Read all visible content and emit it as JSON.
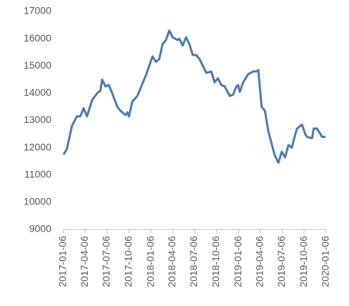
{
  "chart_data": {
    "type": "line",
    "color": "#4a7ab5",
    "x": [
      "2017-01-06",
      "2017-01-20",
      "2017-02-10",
      "2017-03-03",
      "2017-03-17",
      "2017-03-31",
      "2017-04-14",
      "2017-05-05",
      "2017-05-26",
      "2017-06-09",
      "2017-06-16",
      "2017-06-30",
      "2017-07-14",
      "2017-07-28",
      "2017-08-18",
      "2017-09-01",
      "2017-09-22",
      "2017-09-29",
      "2017-10-06",
      "2017-10-20",
      "2017-11-10",
      "2017-11-24",
      "2017-12-15",
      "2018-01-12",
      "2018-01-26",
      "2018-02-09",
      "2018-02-23",
      "2018-03-09",
      "2018-03-23",
      "2018-04-06",
      "2018-04-27",
      "2018-05-04",
      "2018-05-18",
      "2018-06-01",
      "2018-06-15",
      "2018-06-29",
      "2018-07-13",
      "2018-07-27",
      "2018-08-24",
      "2018-09-14",
      "2018-09-28",
      "2018-10-12",
      "2018-10-26",
      "2018-11-09",
      "2018-11-30",
      "2018-12-14",
      "2018-12-28",
      "2019-01-04",
      "2019-01-11",
      "2019-01-25",
      "2019-02-15",
      "2019-03-08",
      "2019-03-22",
      "2019-03-29",
      "2019-04-12",
      "2019-04-26",
      "2019-05-10",
      "2019-05-31",
      "2019-06-07",
      "2019-06-21",
      "2019-07-05",
      "2019-07-19",
      "2019-08-02",
      "2019-08-16",
      "2019-08-23",
      "2019-09-06",
      "2019-09-27",
      "2019-10-11",
      "2019-10-18",
      "2019-11-08",
      "2019-11-15",
      "2019-11-29",
      "2019-12-20",
      "2020-01-03"
    ],
    "values": [
      11750,
      11950,
      12800,
      13150,
      13150,
      13450,
      13150,
      13750,
      14000,
      14100,
      14500,
      14250,
      14300,
      14000,
      13500,
      13350,
      13200,
      13300,
      13150,
      13700,
      13900,
      14200,
      14650,
      15350,
      15150,
      15250,
      15800,
      15950,
      16300,
      16050,
      15950,
      16000,
      15750,
      16050,
      15800,
      15400,
      15400,
      15250,
      14750,
      14800,
      14400,
      14550,
      14300,
      14250,
      13900,
      13950,
      14250,
      14300,
      14050,
      14400,
      14700,
      14800,
      14800,
      14850,
      13500,
      13350,
      12600,
      11900,
      11700,
      11450,
      11850,
      11650,
      12100,
      12000,
      12250,
      12700,
      12850,
      12500,
      12400,
      12350,
      12700,
      12700,
      12400,
      12400
    ],
    "xlim": [
      "2017-01-06",
      "2020-01-06"
    ],
    "xticks": [
      "2017-01-06",
      "2017-04-06",
      "2017-07-06",
      "2017-10-06",
      "2018-01-06",
      "2018-04-06",
      "2018-07-06",
      "2018-10-06",
      "2019-01-06",
      "2019-04-06",
      "2019-07-06",
      "2019-10-06",
      "2020-01-06"
    ],
    "ylim": [
      9000,
      17000
    ],
    "yticks": [
      9000,
      10000,
      11000,
      12000,
      13000,
      14000,
      15000,
      16000,
      17000
    ],
    "grid": false
  }
}
